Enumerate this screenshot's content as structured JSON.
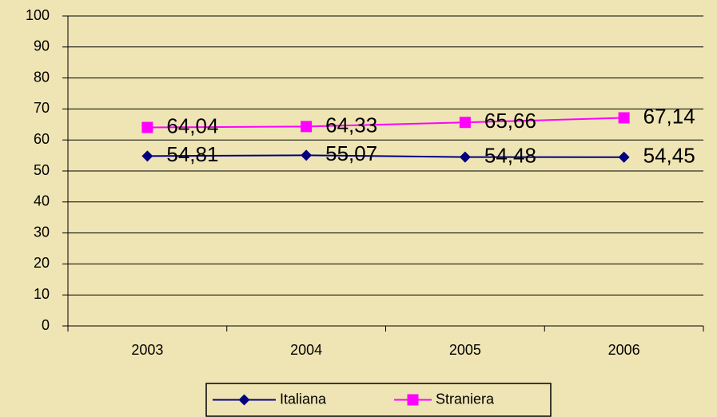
{
  "chart_data": {
    "type": "line",
    "categories": [
      "2003",
      "2004",
      "2005",
      "2006"
    ],
    "series": [
      {
        "name": "Italiana",
        "color": "#000080",
        "marker": "diamond",
        "values": [
          54.81,
          55.07,
          54.48,
          54.45
        ],
        "value_labels": [
          "54,81",
          "55,07",
          "54,48",
          "54,45"
        ]
      },
      {
        "name": "Straniera",
        "color": "#ff00ff",
        "marker": "square",
        "values": [
          64.04,
          64.33,
          65.66,
          67.14
        ],
        "value_labels": [
          "64,04",
          "64,33",
          "65,66",
          "67,14"
        ]
      }
    ],
    "ylim": [
      0,
      100
    ],
    "yticks": [
      0,
      10,
      20,
      30,
      40,
      50,
      60,
      70,
      80,
      90,
      100
    ],
    "grid": true,
    "legend": "bottom"
  }
}
